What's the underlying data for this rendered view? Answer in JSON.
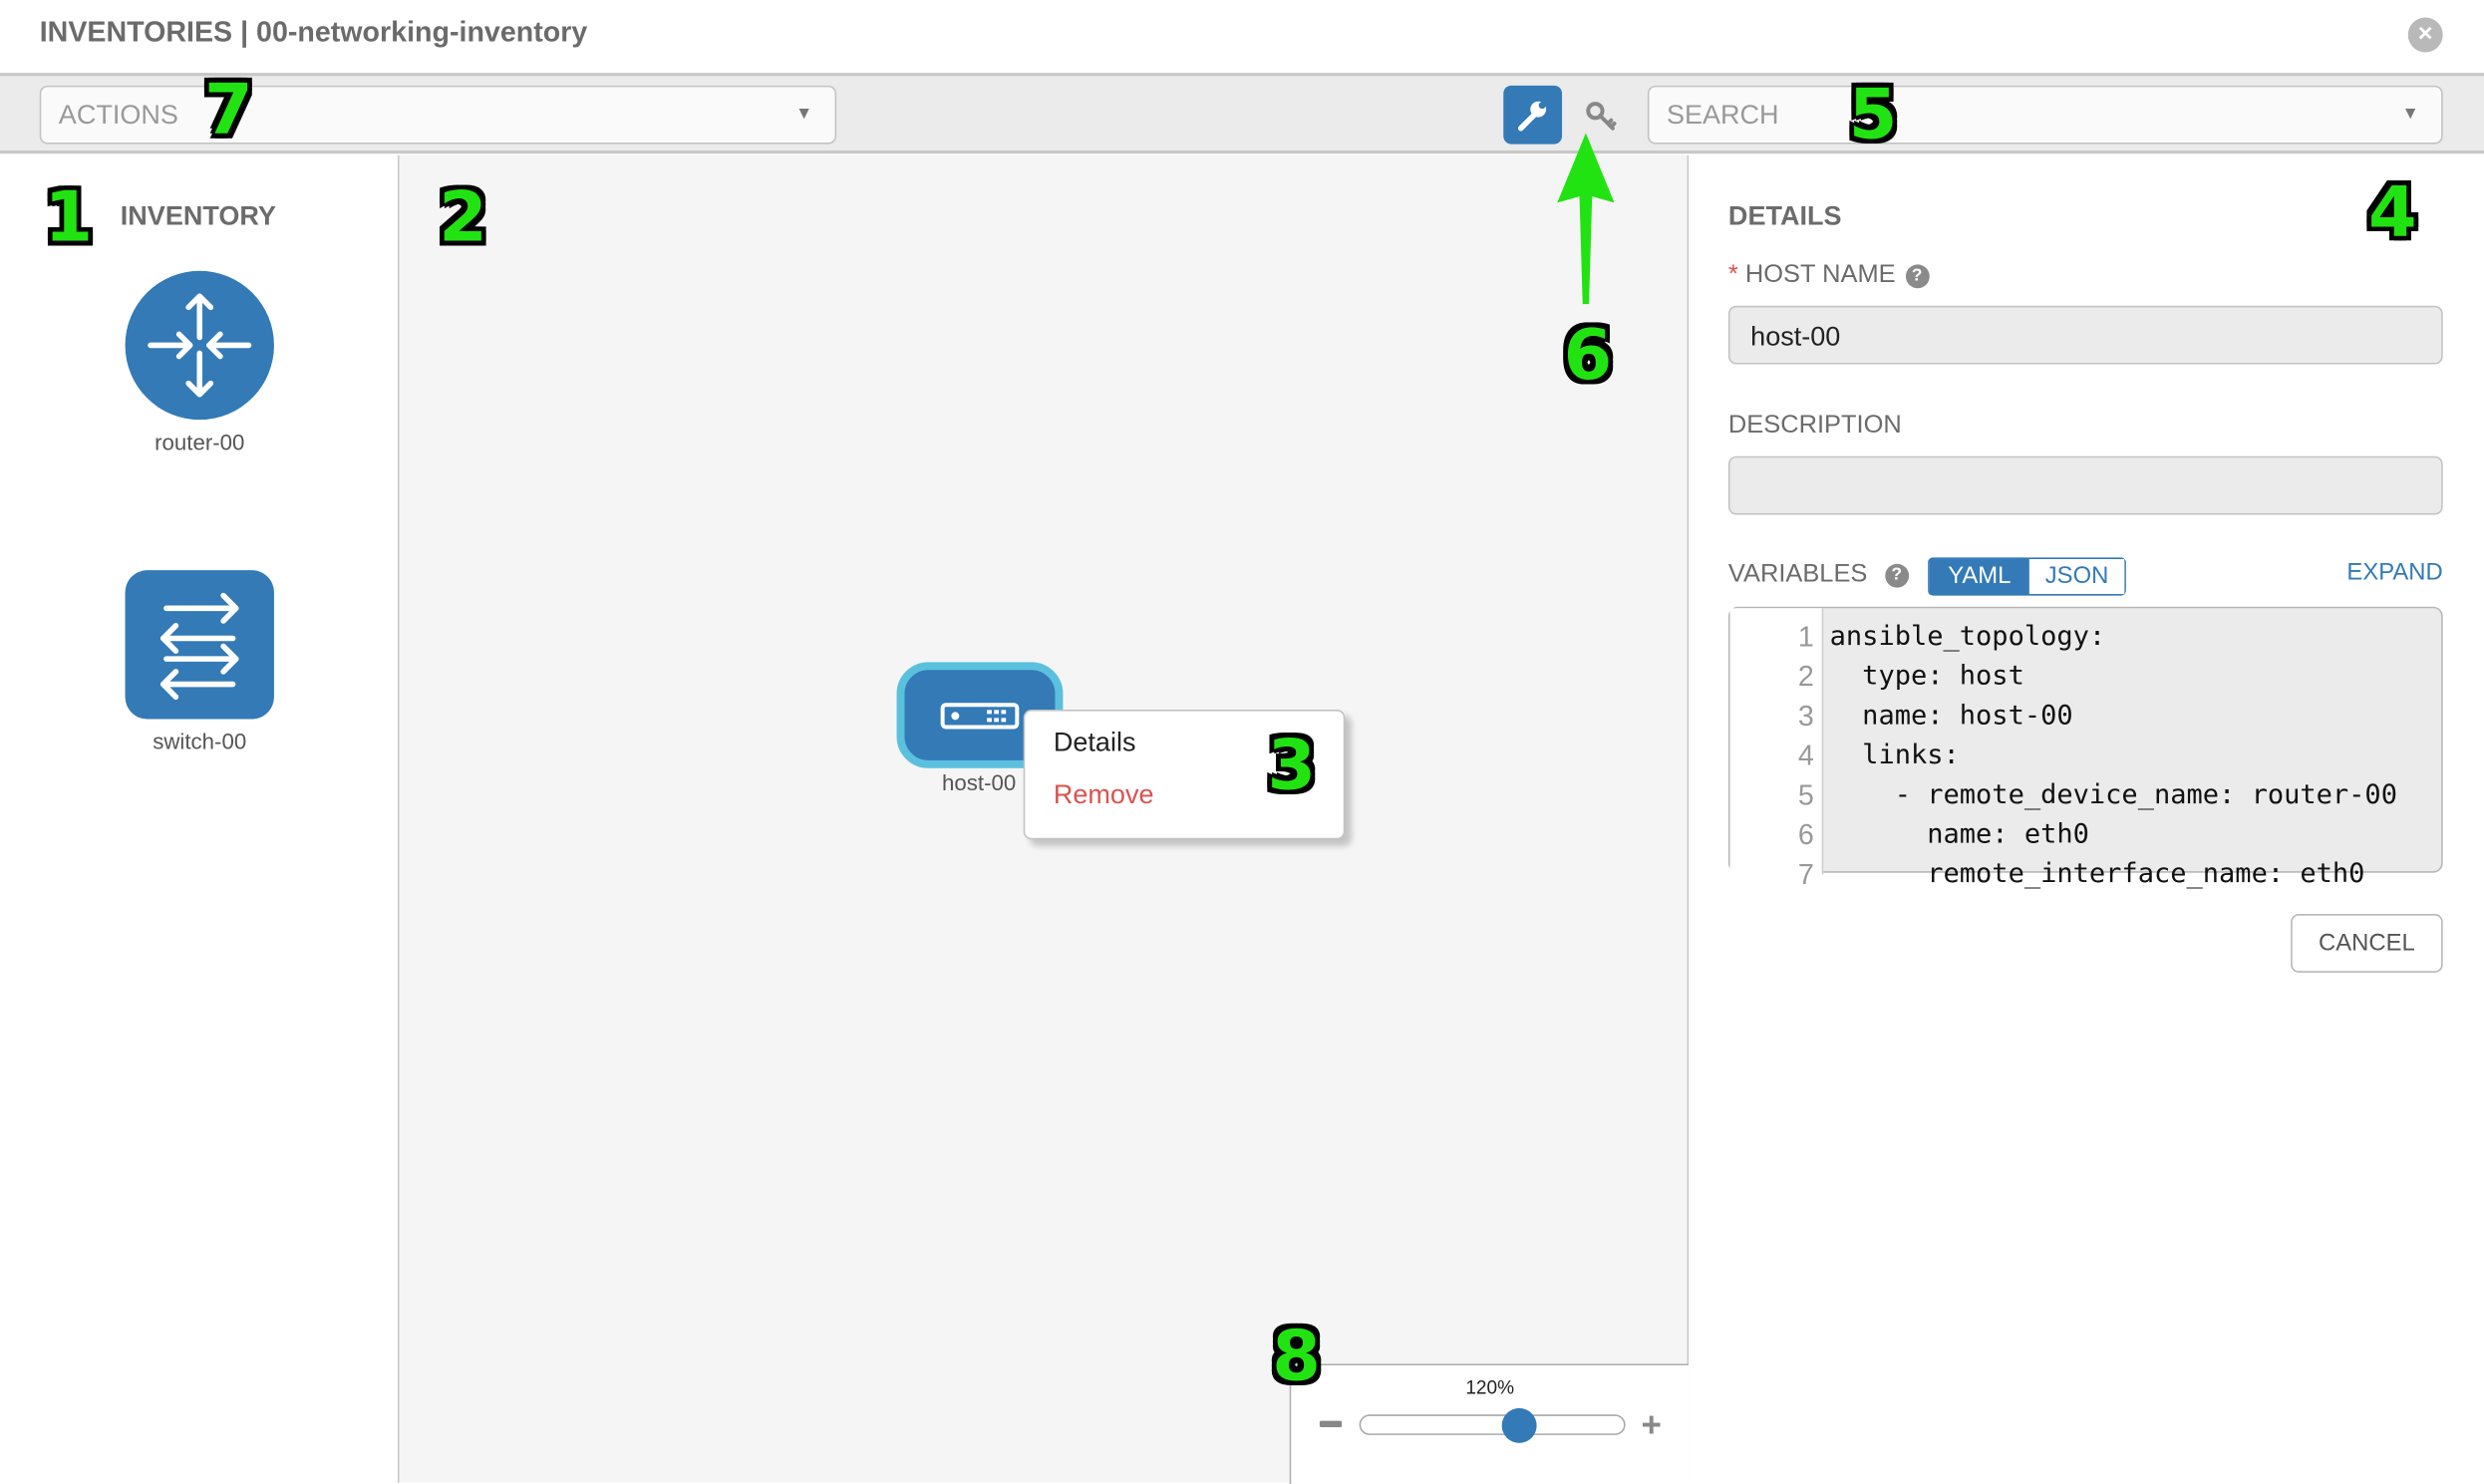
{
  "header": {
    "title": "INVENTORIES | 00-networking-inventory",
    "close_icon": "close-circle-icon"
  },
  "toolbar": {
    "actions_placeholder": "ACTIONS",
    "search_placeholder": "SEARCH",
    "wrench_icon": "wrench-icon",
    "key_icon": "key-icon"
  },
  "inventory": {
    "title": "INVENTORY",
    "items": [
      {
        "label": "router-00",
        "icon": "router-icon"
      },
      {
        "label": "switch-00",
        "icon": "switch-icon"
      }
    ]
  },
  "canvas": {
    "node": {
      "label": "host-00",
      "icon": "host-icon"
    },
    "context_menu": {
      "details": "Details",
      "remove": "Remove"
    }
  },
  "zoom": {
    "level_label": "120%",
    "level_fraction": 0.6
  },
  "details": {
    "title": "DETAILS",
    "host_name_label": "HOST NAME",
    "required_mark": "*",
    "host_name_value": "host-00",
    "description_label": "DESCRIPTION",
    "description_value": "",
    "variables_label": "VARIABLES",
    "yaml": "YAML",
    "json": "JSON",
    "expand": "EXPAND",
    "code_lines": [
      "ansible_topology:",
      "  type: host",
      "  name: host-00",
      "  links:",
      "    - remote_device_name: router-00",
      "      name: eth0",
      "      remote_interface_name: eth0"
    ],
    "cancel": "CANCEL"
  },
  "callouts": [
    "1",
    "2",
    "3",
    "4",
    "5",
    "6",
    "7",
    "8"
  ],
  "colors": {
    "primary": "#337ab7",
    "node_border": "#5bc0de",
    "danger": "#d9534f",
    "callout": "#22e312"
  }
}
